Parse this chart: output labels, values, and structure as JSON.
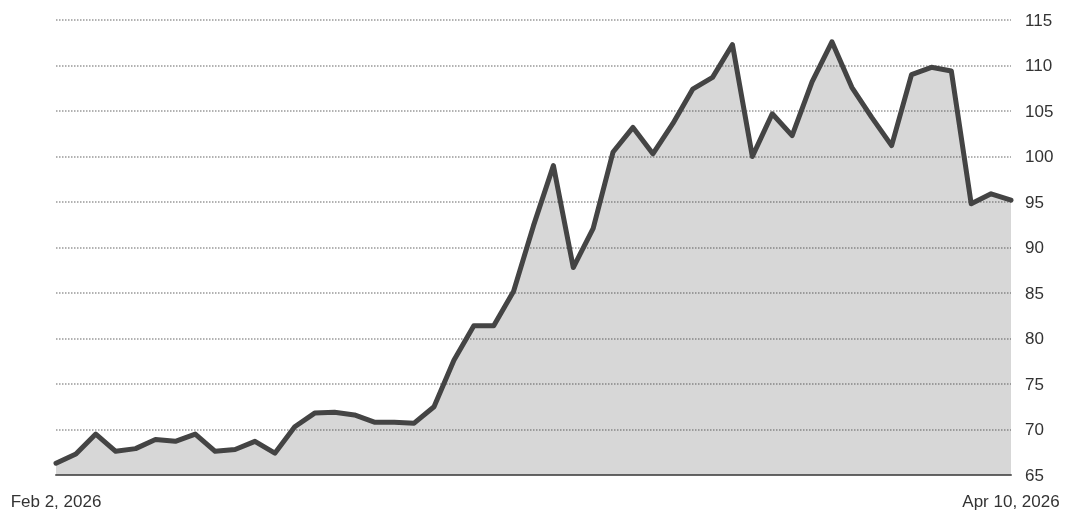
{
  "chart_data": {
    "type": "area",
    "categories": [
      "Feb 2, 2026",
      null,
      null,
      null,
      null,
      null,
      null,
      null,
      null,
      null,
      null,
      null,
      null,
      null,
      null,
      null,
      null,
      null,
      null,
      null,
      null,
      null,
      null,
      null,
      null,
      null,
      null,
      null,
      null,
      null,
      null,
      null,
      null,
      null,
      null,
      null,
      null,
      null,
      null,
      null,
      null,
      null,
      null,
      null,
      null,
      null,
      null,
      null,
      "Apr 10, 2026"
    ],
    "series": [
      {
        "color": "#444444",
        "values": [
          66.3,
          67.3,
          69.5,
          67.6,
          67.9,
          68.9,
          68.7,
          69.5,
          67.6,
          67.8,
          68.7,
          67.4,
          70.3,
          71.8,
          71.9,
          71.6,
          70.8,
          70.8,
          70.7,
          72.5,
          77.6,
          81.4,
          81.4,
          85.2,
          92.4,
          99.0,
          87.8,
          92.1,
          100.5,
          103.2,
          100.3,
          103.6,
          107.4,
          108.7,
          112.3,
          100.0,
          104.7,
          102.3,
          108.2,
          112.6,
          107.6,
          104.3,
          101.2,
          109.0,
          109.8,
          109.4,
          94.8,
          95.9,
          95.2
        ]
      }
    ],
    "ylim": [
      65,
      115
    ],
    "yticks": [
      65,
      70,
      75,
      80,
      85,
      90,
      95,
      100,
      105,
      110,
      115
    ],
    "grid": "y",
    "marker": "none",
    "line_style": "solid"
  }
}
